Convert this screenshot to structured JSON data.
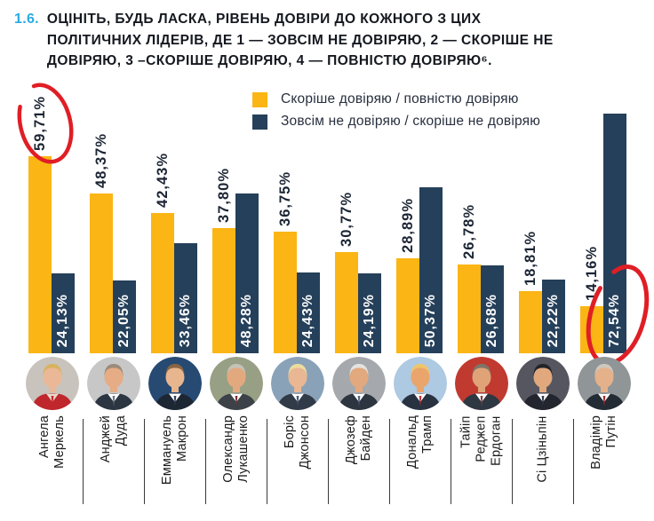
{
  "header": {
    "number": "1.6.",
    "title_lines": [
      "ОЦІНІТЬ, БУДЬ ЛАСКА, РІВЕНЬ ДОВІРИ ДО КОЖНОГО З ЦИХ",
      "ПОЛІТИЧНИХ ЛІДЕРІВ, ДЕ 1 — ЗОВСІМ НЕ ДОВІРЯЮ, 2 — СКОРІШЕ НЕ",
      "ДОВІРЯЮ, 3 –СКОРІШЕ ДОВІРЯЮ, 4 — ПОВНІСТЮ ДОВІРЯЮ⁶."
    ]
  },
  "legend": {
    "trust_label": "Скоріше довіряю / повністю довіряю",
    "distrust_label": "Зовсім не довіряю / скоріше не довіряю"
  },
  "colors": {
    "trust": "#FBB514",
    "distrust": "#25405A",
    "annotation_red": "#E01E25",
    "title_number": "#29ABE2"
  },
  "chart_data": {
    "type": "bar",
    "categories": [
      "Ангела Меркель",
      "Анджей Дуда",
      "Еммануель Макрон",
      "Олександр Лукашенко",
      "Боріс Джонсон",
      "Джозеф Байден",
      "Дональд Трамп",
      "Тайіп Реджеп Ердоган",
      "Сі Цзіньпін",
      "Владімір Путін"
    ],
    "series": [
      {
        "name": "Скоріше довіряю / повністю довіряю",
        "values": [
          59.71,
          48.37,
          42.43,
          37.8,
          36.75,
          30.77,
          28.89,
          26.78,
          18.81,
          14.16
        ]
      },
      {
        "name": "Зовсім не довіряю / скоріше не довіряю",
        "values": [
          24.13,
          22.05,
          33.46,
          48.28,
          24.43,
          24.19,
          50.37,
          26.68,
          22.22,
          72.54
        ]
      }
    ],
    "value_label_format": "comma-decimal-percent",
    "ylim": [
      0,
      75
    ],
    "grid": false,
    "legend_position": "top-center",
    "annotations": [
      {
        "type": "hand-drawn-red-circle",
        "text": "59,71%",
        "target": "Ангела Меркель — довіряю"
      },
      {
        "type": "hand-drawn-red-circle",
        "text": "72,54%",
        "target": "Владімір Путін — не довіряю"
      }
    ]
  },
  "leaders": [
    {
      "lines": [
        "Ангела",
        "Меркель"
      ],
      "photo": {
        "bg": "#c8c3bc",
        "hair": "#d8b25e",
        "skin": "#eab896",
        "suit": "#c0272d",
        "shirt": "#e8d9c8",
        "tie": "#c0272d"
      }
    },
    {
      "lines": [
        "Анджей",
        "Дуда"
      ],
      "photo": {
        "bg": "#c7c7c7",
        "hair": "#9b8c7a",
        "skin": "#e6ac85",
        "suit": "#2b3642",
        "shirt": "#ffffff",
        "tie": "#6a7486"
      }
    },
    {
      "lines": [
        "Еммануель",
        "Макрон"
      ],
      "photo": {
        "bg": "#274a73",
        "hair": "#8a6544",
        "skin": "#e8b68e",
        "suit": "#1d2733",
        "shirt": "#ffffff",
        "tie": "#30405c"
      }
    },
    {
      "lines": [
        "Олександр",
        "Лукашенко"
      ],
      "photo": {
        "bg": "#97a084",
        "hair": "#c5c2b8",
        "skin": "#e3a97e",
        "suit": "#3c4248",
        "shirt": "#ffffff",
        "tie": "#7a2f33"
      }
    },
    {
      "lines": [
        "Боріс",
        "Джонсон"
      ],
      "photo": {
        "bg": "#8aa2b8",
        "hair": "#ecdc9f",
        "skin": "#e9b793",
        "suit": "#313b48",
        "shirt": "#ffffff",
        "tie": "#3e5a80"
      }
    },
    {
      "lines": [
        "Джозеф",
        "Байден"
      ],
      "photo": {
        "bg": "#a5a9ad",
        "hair": "#e3e3e0",
        "skin": "#e2a87e",
        "suit": "#2d3540",
        "shirt": "#ffffff",
        "tie": "#4f6586"
      }
    },
    {
      "lines": [
        "Дональд",
        "Трамп"
      ],
      "photo": {
        "bg": "#aec9e2",
        "hair": "#eec569",
        "skin": "#e9a56b",
        "suit": "#283240",
        "shirt": "#ffffff",
        "tie": "#c23434"
      }
    },
    {
      "lines": [
        "Тайіп",
        "Реджеп",
        "Ердоган"
      ],
      "photo": {
        "bg": "#c03a30",
        "hair": "#7e7468",
        "skin": "#dfa377",
        "suit": "#2e3843",
        "shirt": "#ffffff",
        "tie": "#8c3a3a"
      }
    },
    {
      "lines": [
        "Сі Цзіньпін"
      ],
      "photo": {
        "bg": "#565660",
        "hair": "#23242a",
        "skin": "#e0a87c",
        "suit": "#23262e",
        "shirt": "#ffffff",
        "tie": "#303a4a"
      }
    },
    {
      "lines": [
        "Владімір",
        "Путін"
      ],
      "photo": {
        "bg": "#909598",
        "hair": "#cfc8bd",
        "skin": "#e5b18a",
        "suit": "#232b35",
        "shirt": "#ffffff",
        "tie": "#a82a2a"
      }
    }
  ]
}
